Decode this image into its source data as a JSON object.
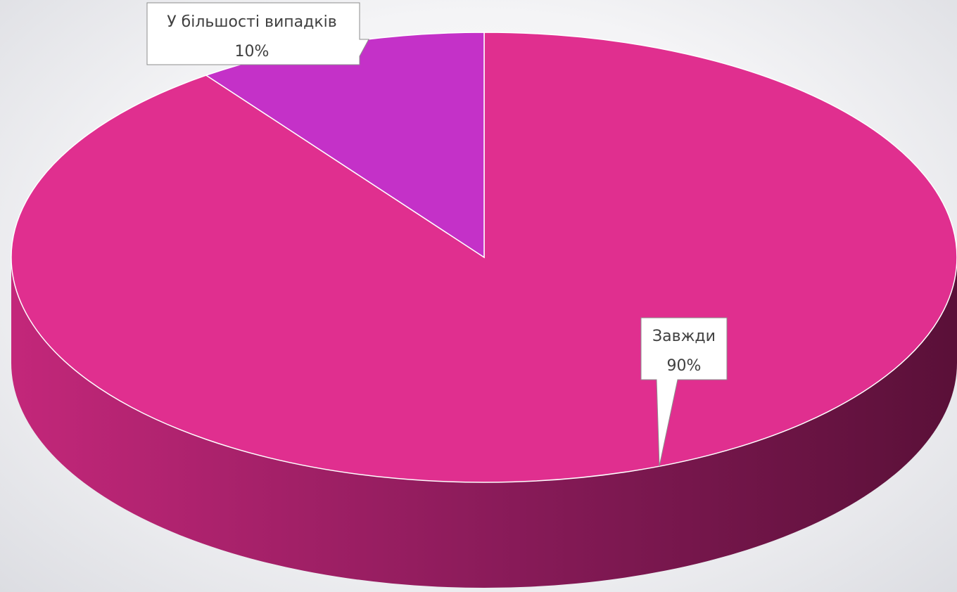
{
  "chart_data": {
    "type": "pie",
    "style": "3d",
    "categories": [
      "Завжди",
      "У більшості випадків"
    ],
    "values": [
      90,
      10
    ],
    "value_labels": [
      "90%",
      "10%"
    ],
    "colors": [
      "#e02f8f",
      "#c431c8"
    ],
    "side_color_dark": "#5a1038",
    "title": "",
    "legend": "none"
  }
}
